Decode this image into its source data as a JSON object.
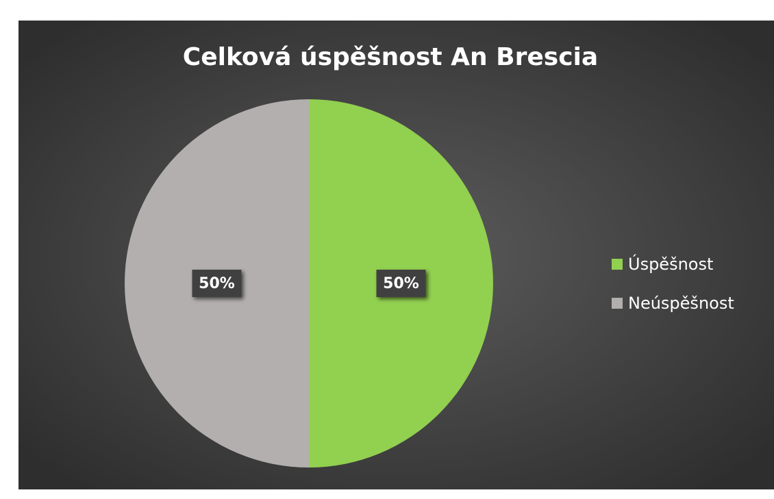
{
  "chart_data": {
    "type": "pie",
    "title": "Celková úspěšnost An Brescia",
    "categories": [
      "Úspěšnost",
      "Neúspěšnost"
    ],
    "values": [
      50,
      50
    ],
    "value_labels": [
      "50%",
      "50%"
    ],
    "colors": [
      "#92d050",
      "#b3afae"
    ],
    "legend": "right"
  }
}
